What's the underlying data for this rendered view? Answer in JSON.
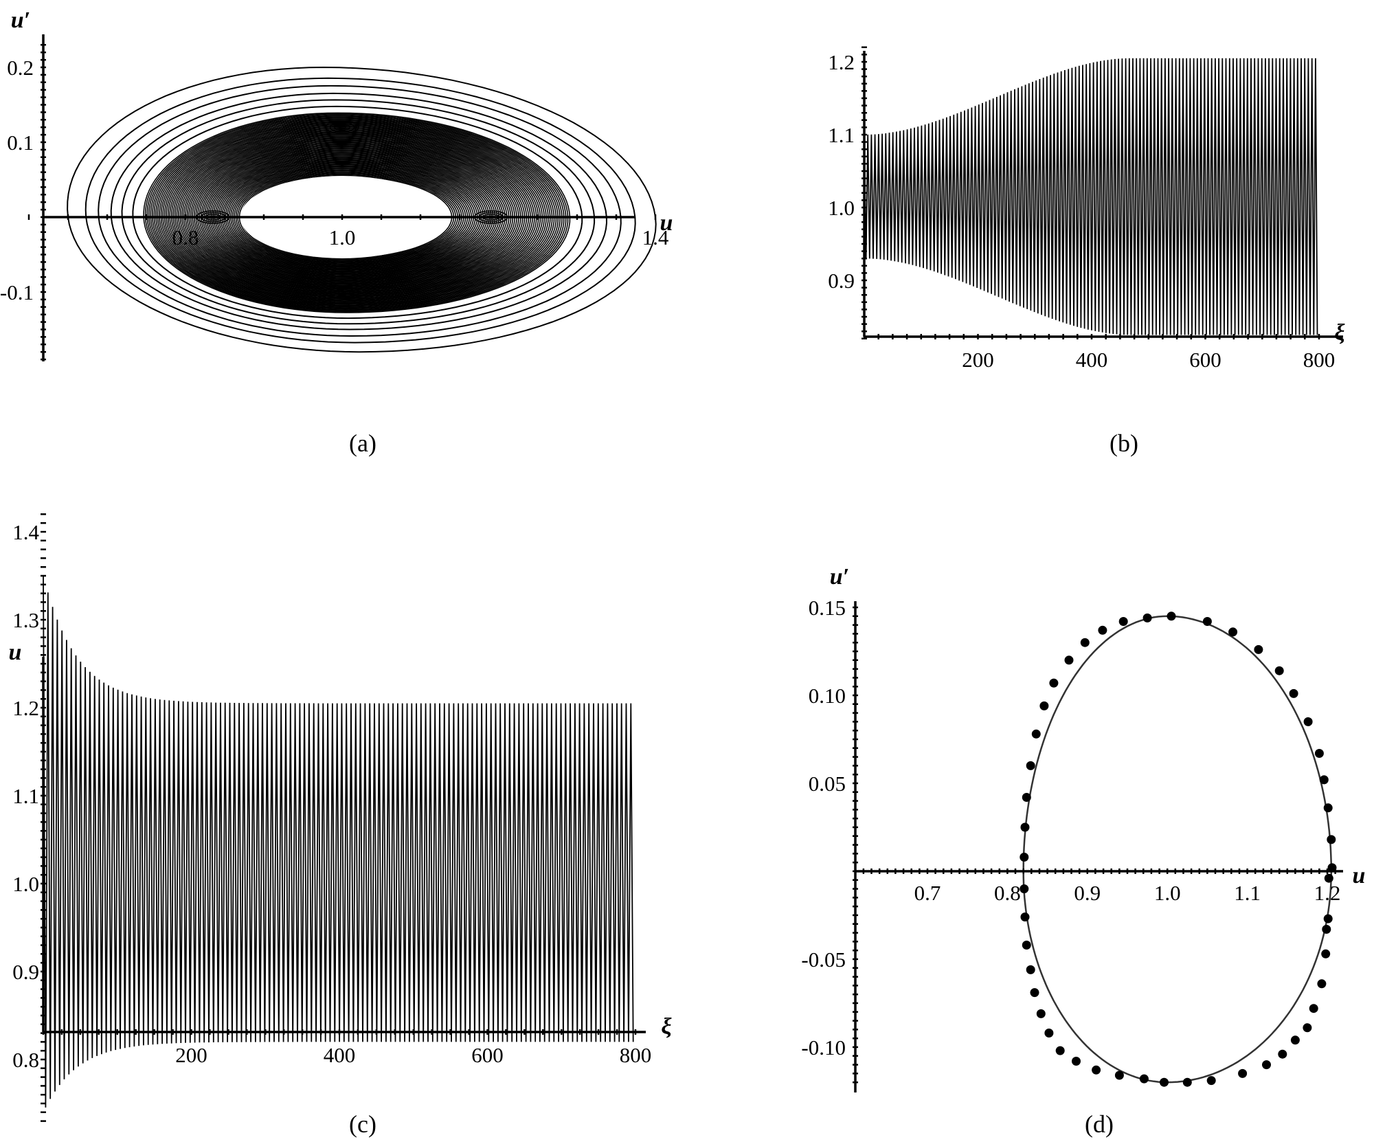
{
  "chart_data": [
    {
      "panel": "(a)",
      "type": "line",
      "kind": "phase-portrait",
      "xlabel": "u",
      "ylabel": "u′",
      "xlim": [
        0.5,
        1.4
      ],
      "ylim": [
        -0.19,
        0.24
      ],
      "xticks": [
        {
          "v": 0.8,
          "t": "0.8"
        },
        {
          "v": 1.0,
          "t": "1.0"
        },
        {
          "v": 1.4,
          "t": "1.4"
        }
      ],
      "yticks": [
        {
          "v": 0.2,
          "t": "0.2"
        },
        {
          "v": 0.1,
          "t": "0.1"
        },
        {
          "v": -0.1,
          "t": "-0.1"
        }
      ],
      "center": [
        1.0,
        0.0
      ],
      "outer_orbit": {
        "u_min": 0.65,
        "u_max": 1.4,
        "up_max": 0.2,
        "up_min": -0.18
      },
      "inner_hole": {
        "u_min": 0.88,
        "u_max": 1.14,
        "up_max": 0.055,
        "up_min": -0.055
      },
      "dense_band": {
        "u_min": 0.82,
        "u_max": 1.2,
        "up_max": 0.145,
        "up_min": -0.12
      },
      "label_u": "u",
      "label_up": "u′"
    },
    {
      "panel": "(b)",
      "type": "line",
      "kind": "time-series",
      "xlabel": "ξ",
      "ylabel": "",
      "xlim": [
        0,
        800
      ],
      "ylim": [
        0.82,
        1.22
      ],
      "xticks": [
        {
          "v": 200,
          "t": "200"
        },
        {
          "v": 400,
          "t": "400"
        },
        {
          "v": 600,
          "t": "600"
        },
        {
          "v": 800,
          "t": "800"
        }
      ],
      "yticks": [
        {
          "v": 1.2,
          "t": "1.2"
        },
        {
          "v": 1.1,
          "t": "1.1"
        },
        {
          "v": 1.0,
          "t": "1.0"
        },
        {
          "v": 0.9,
          "t": "0.9"
        }
      ],
      "period": 6.3,
      "xi_end": 800,
      "envelope": {
        "start_amplitude": 0.085,
        "end_amplitude": 0.19,
        "center": 1.015,
        "growth_time": 120
      },
      "label_xi": "ξ"
    },
    {
      "panel": "(c)",
      "type": "line",
      "kind": "time-series",
      "xlabel": "ξ",
      "ylabel": "u",
      "xlim": [
        0,
        800
      ],
      "ylim": [
        0.72,
        1.42
      ],
      "xticks": [
        {
          "v": 200,
          "t": "200"
        },
        {
          "v": 400,
          "t": "400"
        },
        {
          "v": 600,
          "t": "600"
        },
        {
          "v": 800,
          "t": "800"
        }
      ],
      "yticks": [
        {
          "v": 1.4,
          "t": "1.4"
        },
        {
          "v": 1.3,
          "t": "1.3"
        },
        {
          "v": 1.2,
          "t": "1.2"
        },
        {
          "v": 1.1,
          "t": "1.1"
        },
        {
          "v": 1.0,
          "t": "1.0"
        },
        {
          "v": 0.9,
          "t": "0.9"
        },
        {
          "v": 0.8,
          "t": "0.8"
        }
      ],
      "period": 6.3,
      "xi_end": 800,
      "envelope": {
        "start_max": 1.35,
        "end_max": 1.205,
        "start_min": 0.74,
        "end_min": 0.82,
        "decay_time": 45
      },
      "label_u": "u",
      "label_xi": "ξ"
    },
    {
      "panel": "(d)",
      "type": "scatter",
      "kind": "phase-portrait",
      "xlabel": "u",
      "ylabel": "u′",
      "xlim": [
        0.6,
        1.22
      ],
      "ylim": [
        -0.12,
        0.15
      ],
      "xticks": [
        {
          "v": 0.7,
          "t": "0.7"
        },
        {
          "v": 0.8,
          "t": "0.8"
        },
        {
          "v": 0.9,
          "t": "0.9"
        },
        {
          "v": 1.0,
          "t": "1.0"
        },
        {
          "v": 1.1,
          "t": "1.1"
        },
        {
          "v": 1.2,
          "t": "1.2"
        }
      ],
      "yticks": [
        {
          "v": 0.15,
          "t": "0.15"
        },
        {
          "v": 0.1,
          "t": "0.10"
        },
        {
          "v": 0.05,
          "t": "0.05"
        },
        {
          "v": -0.05,
          "t": "-0.05"
        },
        {
          "v": -0.1,
          "t": "-0.10"
        }
      ],
      "orbit": {
        "u_min": 0.82,
        "u_max": 1.205,
        "up_max": 0.145,
        "up_min": -0.12,
        "u_center": 1.0
      },
      "points": [
        [
          1.005,
          0.145
        ],
        [
          1.05,
          0.142
        ],
        [
          1.082,
          0.136
        ],
        [
          1.114,
          0.126
        ],
        [
          1.14,
          0.114
        ],
        [
          1.158,
          0.101
        ],
        [
          1.176,
          0.085
        ],
        [
          1.19,
          0.067
        ],
        [
          1.196,
          0.052
        ],
        [
          1.201,
          0.036
        ],
        [
          1.205,
          0.018
        ],
        [
          1.206,
          0.002
        ],
        [
          1.202,
          -0.004
        ],
        [
          1.201,
          -0.027
        ],
        [
          1.199,
          -0.033
        ],
        [
          1.198,
          -0.047
        ],
        [
          1.193,
          -0.064
        ],
        [
          1.183,
          -0.078
        ],
        [
          1.175,
          -0.089
        ],
        [
          1.16,
          -0.096
        ],
        [
          1.144,
          -0.104
        ],
        [
          1.124,
          -0.11
        ],
        [
          1.094,
          -0.115
        ],
        [
          1.055,
          -0.119
        ],
        [
          1.025,
          -0.12
        ],
        [
          0.996,
          -0.12
        ],
        [
          0.971,
          -0.118
        ],
        [
          0.94,
          -0.116
        ],
        [
          0.911,
          -0.113
        ],
        [
          0.886,
          -0.108
        ],
        [
          0.866,
          -0.102
        ],
        [
          0.852,
          -0.092
        ],
        [
          0.842,
          -0.081
        ],
        [
          0.834,
          -0.069
        ],
        [
          0.829,
          -0.056
        ],
        [
          0.824,
          -0.042
        ],
        [
          0.822,
          -0.026
        ],
        [
          0.821,
          -0.01
        ],
        [
          0.821,
          0.008
        ],
        [
          0.822,
          0.025
        ],
        [
          0.824,
          0.042
        ],
        [
          0.829,
          0.06
        ],
        [
          0.836,
          0.078
        ],
        [
          0.846,
          0.094
        ],
        [
          0.858,
          0.107
        ],
        [
          0.877,
          0.12
        ],
        [
          0.897,
          0.13
        ],
        [
          0.919,
          0.137
        ],
        [
          0.945,
          0.142
        ],
        [
          0.975,
          0.144
        ]
      ],
      "label_u": "u",
      "label_up": "u′"
    }
  ],
  "panel_labels": {
    "a": "(a)",
    "b": "(b)",
    "c": "(c)",
    "d": "(d)"
  }
}
